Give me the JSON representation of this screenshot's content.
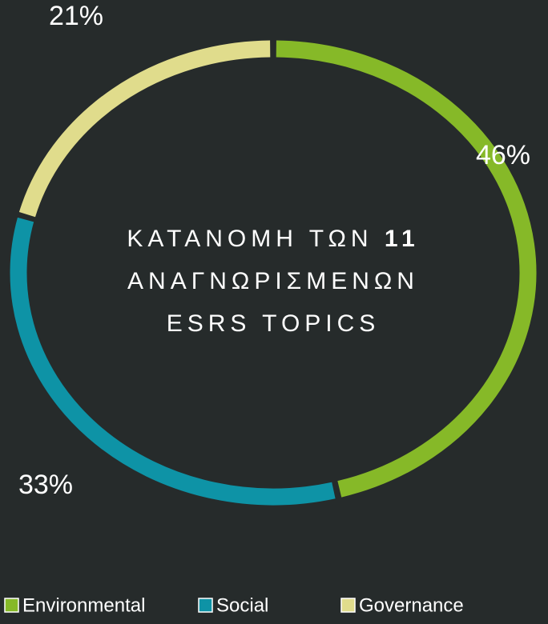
{
  "chart_data": {
    "type": "donut",
    "title_lines": [
      [
        "ΚΑΤΑΝΟΜΗ ΤΩΝ",
        "11"
      ],
      [
        "ΑΝΑΓΝΩΡΙΣΜΕΝΩΝ"
      ],
      [
        "ESRS TOPICS"
      ]
    ],
    "categories": [
      "Environmental",
      "Social",
      "Governance"
    ],
    "values": [
      46,
      33,
      21
    ],
    "value_labels": [
      "46%",
      "33%",
      "21%"
    ],
    "colors": [
      "#86b928",
      "#0e93a6",
      "#e0dc8c"
    ],
    "legend": "bottom"
  }
}
